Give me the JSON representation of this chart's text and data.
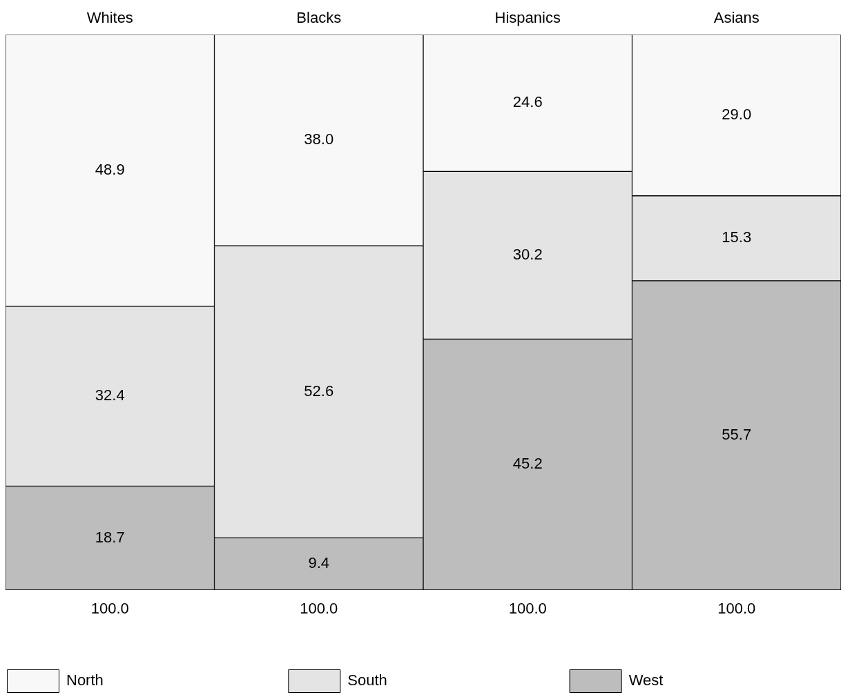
{
  "chart_data": {
    "type": "bar",
    "stacked": true,
    "categories": [
      "Whites",
      "Blacks",
      "Hispanics",
      "Asians"
    ],
    "series": [
      {
        "name": "West",
        "color": "#bdbdbd",
        "values": [
          18.7,
          9.4,
          45.2,
          55.7
        ],
        "value_labels": [
          "18.7",
          "9.4",
          "45.2",
          "55.7"
        ]
      },
      {
        "name": "South",
        "color": "#e4e4e4",
        "values": [
          32.4,
          52.6,
          30.2,
          15.3
        ],
        "value_labels": [
          "32.4",
          "52.6",
          "30.2",
          "15.3"
        ]
      },
      {
        "name": "North",
        "color": "#f8f8f8",
        "values": [
          48.9,
          38.0,
          24.6,
          29.0
        ],
        "value_labels": [
          "48.9",
          "38.0",
          "24.6",
          "29.0"
        ]
      }
    ],
    "totals": [
      "100.0",
      "100.0",
      "100.0",
      "100.0"
    ],
    "ylim": [
      0,
      100
    ],
    "legend": "bottom",
    "grid": false
  }
}
